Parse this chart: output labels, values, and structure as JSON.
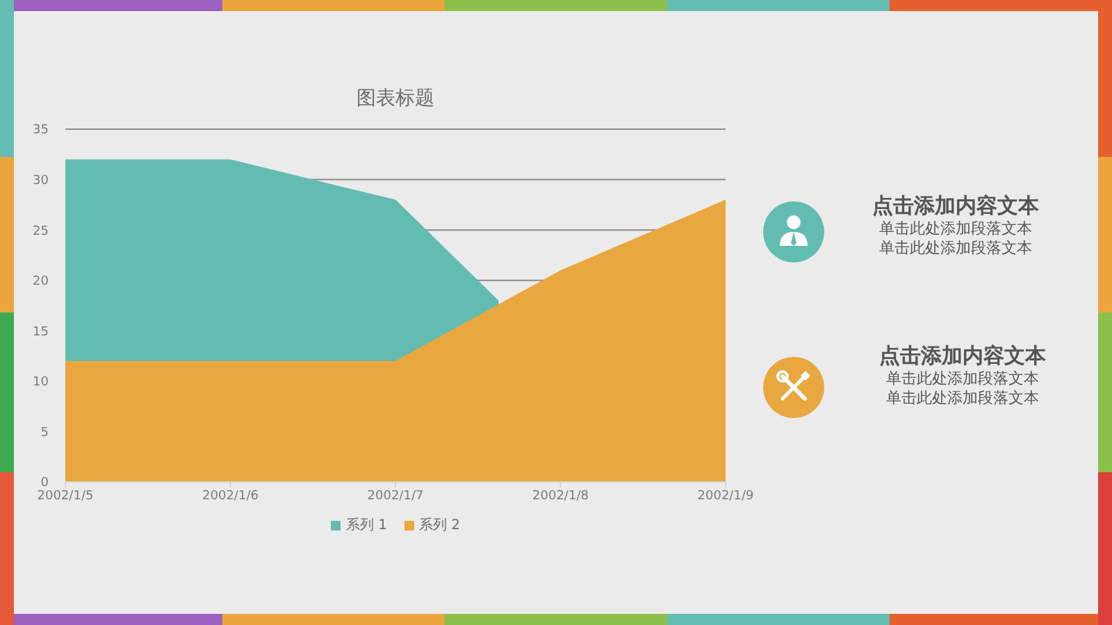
{
  "chart_data": [
    {
      "type": "area",
      "title": "图表标题",
      "x": [
        "2002-01-05",
        "2002-01-06",
        "2002-01-07",
        "2002-01-08",
        "2002-01-09"
      ],
      "series": [
        {
          "name": "系列 1",
          "color": "#63bcb1",
          "x": [
            "2002-01-05",
            "2002-01-06",
            "2002-01-07",
            "2002-01-07T15:00"
          ],
          "values": [
            32,
            32,
            28,
            18
          ]
        },
        {
          "name": "系列 2",
          "color": "#e8a73f",
          "values": [
            12,
            12,
            12,
            21,
            28
          ]
        }
      ],
      "xlim": [
        "2002-01-05",
        "2002-01-09"
      ],
      "xticks": [
        {
          "value": "2002-01-05",
          "label": "2002/1/5"
        },
        {
          "value": "2002-01-06",
          "label": "2002/1/6"
        },
        {
          "value": "2002-01-07",
          "label": "2002/1/7"
        },
        {
          "value": "2002-01-08",
          "label": "2002/1/8"
        },
        {
          "value": "2002-01-09",
          "label": "2002/1/9"
        }
      ],
      "ylim": [
        0,
        35
      ],
      "yticks": [
        0,
        5,
        10,
        15,
        20,
        25,
        30,
        35
      ],
      "grid": "y",
      "legend": "bottom"
    },
    {
      "type": "other",
      "annotations": [
        "点击添加内容文本",
        "单击此处添加段落文本",
        "单击此处添加段落文本",
        "点击添加内容文本",
        "单击此处添加段落文本",
        "单击此处添加段落文本"
      ]
    }
  ]
}
